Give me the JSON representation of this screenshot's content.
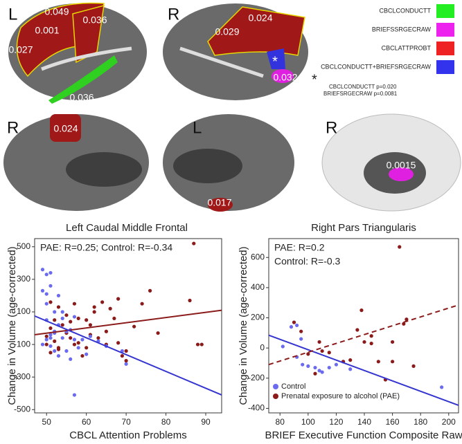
{
  "brain_panels": {
    "sides": [
      "L",
      "R",
      "R",
      "L",
      "R"
    ],
    "values": [
      "0.049",
      "0.001",
      "0.036",
      "0.027",
      "0.036",
      "0.029",
      "0.024",
      "*",
      "0.032",
      "0.024",
      "0.017",
      "0.0015"
    ],
    "legend": [
      {
        "label": "CBCLCONDUCTT",
        "color": "#22ee22"
      },
      {
        "label": "BRIEFSSRGECRAW",
        "color": "#ee22ee"
      },
      {
        "label": "CBCLATTPROBT",
        "color": "#ee2222"
      },
      {
        "label": "CBCLCONDUCTT+BRIEFSRGECRAW",
        "color": "#3333ee"
      }
    ],
    "note_mark": "*",
    "notes": [
      "CBCLCONDUCTT p=0.020",
      "BRIEFSRGECRAW p=0.0081"
    ]
  },
  "chart_data": [
    {
      "type": "scatter",
      "title": "Left Caudal Middle Frontal",
      "x_label": "CBCL Attention Problems",
      "y_label": "Change in Volume (age-corrected)",
      "annotations": [
        "PAE: R=0.25; Control: R=-0.34"
      ],
      "xlim": [
        47,
        94
      ],
      "ylim": [
        -520,
        550
      ],
      "xticks": [
        50,
        60,
        70,
        80,
        90
      ],
      "yticks": [
        -500,
        -300,
        -100,
        100,
        300,
        500
      ],
      "series": [
        {
          "color": "#8b1a1a",
          "x": [
            50,
            50,
            51,
            51,
            52,
            52,
            53,
            53,
            54,
            55,
            55,
            56,
            56,
            57,
            57,
            58,
            58,
            59,
            60,
            60,
            61,
            61,
            62,
            62,
            63,
            64,
            65,
            65,
            66,
            67,
            68,
            68,
            69,
            70,
            70,
            72,
            74,
            76,
            78,
            86,
            87,
            88,
            89,
            51,
            53
          ],
          "values": [
            -50,
            -100,
            0,
            -150,
            50,
            -80,
            130,
            -120,
            20,
            -30,
            80,
            -60,
            40,
            -100,
            150,
            -90,
            60,
            -170,
            -120,
            50,
            20,
            -40,
            100,
            130,
            -60,
            160,
            -20,
            -100,
            120,
            60,
            180,
            -90,
            -170,
            -200,
            -140,
            10,
            150,
            230,
            -30,
            170,
            520,
            -100,
            -100,
            160,
            -130
          ]
        },
        {
          "color": "#6b6bf0",
          "x": [
            49,
            49,
            50,
            50,
            50,
            50,
            51,
            51,
            51,
            51,
            52,
            52,
            52,
            53,
            53,
            53,
            54,
            54,
            55,
            55,
            56,
            56,
            57,
            57,
            58,
            59,
            60,
            61,
            63,
            65,
            69,
            70,
            50,
            52,
            54,
            57,
            49,
            51
          ],
          "values": [
            360,
            230,
            330,
            150,
            50,
            -70,
            340,
            260,
            -110,
            -40,
            100,
            -140,
            -20,
            200,
            20,
            -170,
            -60,
            60,
            -20,
            -140,
            -10,
            -190,
            -410,
            -70,
            -120,
            -70,
            -160,
            -50,
            -80,
            -110,
            -140,
            -220,
            210,
            -30,
            100,
            70,
            -100,
            -60
          ]
        }
      ],
      "fit_lines": [
        {
          "color": "#8b1a1a",
          "dashed": false,
          "x": [
            47,
            94
          ],
          "values": [
            -40,
            110
          ]
        },
        {
          "color": "#3434d0",
          "dashed": false,
          "x": [
            47,
            94
          ],
          "values": [
            75,
            -410
          ]
        }
      ]
    },
    {
      "type": "scatter",
      "title": "Right Pars Triangularis",
      "x_label": "BRIEF Executive Function Composite Raw",
      "y_label": "Change in Volume (age-corrected)",
      "annotations": [
        "PAE: R=0.2",
        "Control: R=-0.3"
      ],
      "xlim": [
        72,
        207
      ],
      "ylim": [
        -430,
        725
      ],
      "xticks": [
        80,
        100,
        120,
        140,
        160,
        180,
        200
      ],
      "yticks": [
        -400,
        -200,
        0,
        200,
        400,
        600
      ],
      "legend": "lower left",
      "series": [
        {
          "name": "Control",
          "color": "#6b6bf0",
          "x": [
            82,
            88,
            90,
            92,
            95,
            100,
            105,
            108,
            115,
            120,
            125,
            130,
            195,
            92,
            96,
            110
          ],
          "values": [
            10,
            140,
            170,
            150,
            60,
            -120,
            -130,
            -150,
            -130,
            -110,
            -90,
            -140,
            -260,
            -60,
            -110,
            -160
          ]
        },
        {
          "name": "Prenatal exposure to alcohol (PAE)",
          "color": "#8b1a1a",
          "x": [
            90,
            95,
            100,
            105,
            108,
            110,
            115,
            125,
            135,
            138,
            140,
            145,
            150,
            155,
            160,
            165,
            168,
            170,
            175,
            160,
            145,
            130
          ],
          "values": [
            170,
            110,
            -40,
            -170,
            40,
            -20,
            -30,
            -90,
            120,
            250,
            40,
            80,
            -90,
            -210,
            -90,
            670,
            160,
            190,
            -120,
            40,
            30,
            -80
          ]
        }
      ],
      "fit_lines": [
        {
          "color": "#3434d0",
          "dashed": false,
          "x": [
            72,
            207
          ],
          "values": [
            85,
            -380
          ]
        },
        {
          "color": "#8b1a1a",
          "dashed": true,
          "x": [
            72,
            207
          ],
          "values": [
            -110,
            285
          ]
        }
      ]
    }
  ]
}
